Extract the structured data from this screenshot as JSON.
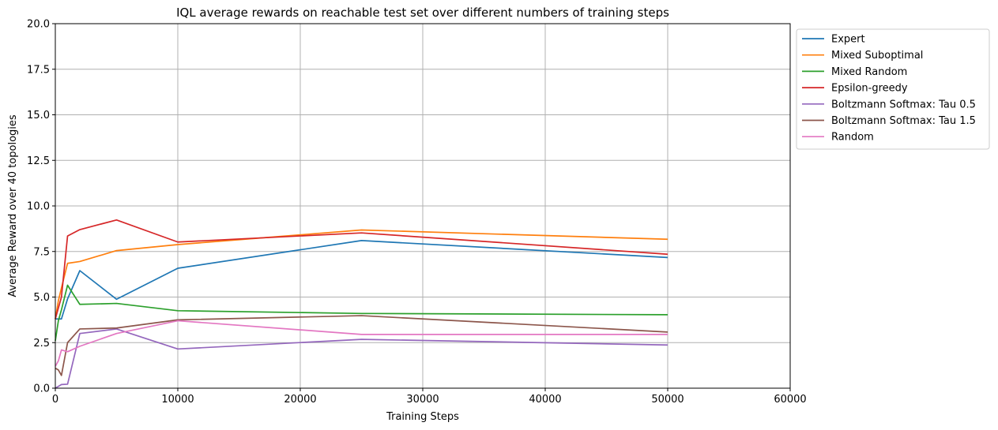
{
  "chart_data": {
    "type": "line",
    "title": "IQL average rewards on reachable test set over different numbers of training steps",
    "xlabel": "Training Steps",
    "ylabel": "Average Reward over 40 topologies",
    "xlim": [
      0,
      60000
    ],
    "ylim": [
      0,
      20
    ],
    "xticks": [
      0,
      10000,
      20000,
      30000,
      40000,
      50000,
      60000
    ],
    "xtick_labels": [
      "0",
      "10000",
      "20000",
      "30000",
      "40000",
      "50000",
      "60000"
    ],
    "yticks": [
      0,
      2.5,
      5,
      7.5,
      10,
      12.5,
      15,
      17.5,
      20
    ],
    "ytick_labels": [
      "0.0",
      "2.5",
      "5.0",
      "7.5",
      "10.0",
      "12.5",
      "15.0",
      "17.5",
      "20.0"
    ],
    "grid": true,
    "legend_position": "outside-top-right",
    "x": [
      0,
      250,
      500,
      1000,
      2000,
      5000,
      10000,
      25000,
      50000
    ],
    "series": [
      {
        "name": "Expert",
        "color": "#1f77b4",
        "values": [
          3.8,
          3.8,
          3.8,
          4.9,
          6.45,
          4.88,
          6.58,
          8.1,
          7.17
        ]
      },
      {
        "name": "Mixed Suboptimal",
        "color": "#ff7f0e",
        "values": [
          3.8,
          4.8,
          5.5,
          6.85,
          6.95,
          7.55,
          7.88,
          8.68,
          8.17
        ]
      },
      {
        "name": "Mixed Random",
        "color": "#2ca02c",
        "values": [
          2.6,
          3.7,
          4.3,
          5.65,
          4.6,
          4.65,
          4.25,
          4.1,
          4.03
        ]
      },
      {
        "name": "Epsilon-greedy",
        "color": "#d62728",
        "values": [
          3.8,
          4.4,
          5.0,
          8.35,
          8.7,
          9.23,
          8.02,
          8.52,
          7.35
        ]
      },
      {
        "name": "Boltzmann Softmax: Tau 0.5",
        "color": "#9467bd",
        "values": [
          0.0,
          0.1,
          0.2,
          0.22,
          3.0,
          3.25,
          2.15,
          2.68,
          2.37
        ]
      },
      {
        "name": "Boltzmann Softmax: Tau 1.5",
        "color": "#8c564b",
        "values": [
          1.1,
          1.0,
          0.7,
          2.5,
          3.25,
          3.3,
          3.75,
          3.98,
          3.08
        ]
      },
      {
        "name": "Random",
        "color": "#e377c2",
        "values": [
          1.2,
          1.5,
          2.1,
          2.0,
          2.3,
          3.0,
          3.7,
          2.95,
          2.95
        ]
      }
    ]
  }
}
